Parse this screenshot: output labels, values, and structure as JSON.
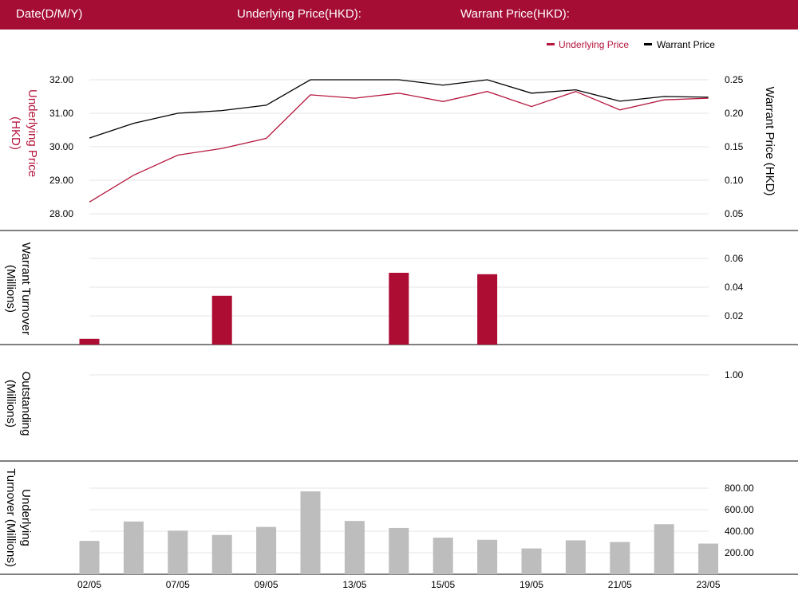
{
  "header": {
    "date_label": "Date(D/M/Y)",
    "underlying_label": "Underlying Price(HKD):",
    "warrant_label": "Warrant Price(HKD):"
  },
  "colors": {
    "brand": "#a50d35",
    "underlying": "#b5173e",
    "warrant": "#000000",
    "turnover_bar": "#ad0c33",
    "underlying_turnover_bar": "#bdbdbd",
    "grid": "#e6e6e6"
  },
  "chart_data": [
    {
      "type": "line",
      "name": "price-panel",
      "x": [
        1,
        2,
        3,
        4,
        5,
        6,
        7,
        8,
        9,
        10,
        11,
        12,
        13,
        14,
        15
      ],
      "series": [
        {
          "name": "Underlying Price",
          "axis": "left",
          "values": [
            28.35,
            29.15,
            29.75,
            29.95,
            30.25,
            31.55,
            31.45,
            31.6,
            31.35,
            31.65,
            31.2,
            31.65,
            31.1,
            31.4,
            31.45
          ]
        },
        {
          "name": "Warrant Price",
          "axis": "right",
          "values": [
            0.163,
            0.185,
            0.2,
            0.204,
            0.212,
            0.25,
            0.25,
            0.25,
            0.242,
            0.25,
            0.23,
            0.235,
            0.218,
            0.225,
            0.224
          ]
        }
      ],
      "ylabel": "Underlying Price (HKD)",
      "ylabel_right": "Warrant  Price (HKD)",
      "yticks": [
        "28.00",
        "29.00",
        "30.00",
        "31.00",
        "32.00"
      ],
      "yticks_right": [
        "0.05",
        "0.10",
        "0.15",
        "0.20",
        "0.25"
      ],
      "ylim": [
        27.5,
        32.5
      ],
      "ylim_right": [
        0.025,
        0.275
      ],
      "legend": "top-right",
      "grid": true
    },
    {
      "type": "bar",
      "name": "warrant-turnover-panel",
      "x": [
        1,
        4,
        8,
        10
      ],
      "values": [
        0.004,
        0.034,
        0.05,
        0.049
      ],
      "ylabel": "Warrant  Turnover (Millions)",
      "yticks": [
        "0.02",
        "0.04",
        "0.06"
      ],
      "ylim": [
        0,
        0.06
      ],
      "grid": true
    },
    {
      "type": "bar",
      "name": "outstanding-panel",
      "x": [],
      "values": [],
      "ylabel": "Outstanding (Millions)",
      "yticks": [
        "1.00"
      ],
      "ylim": [
        0,
        1
      ],
      "grid": true
    },
    {
      "type": "bar",
      "name": "underlying-turnover-panel",
      "x": [
        1,
        2,
        3,
        4,
        5,
        6,
        7,
        8,
        9,
        10,
        11,
        12,
        13,
        14,
        15
      ],
      "values": [
        310,
        490,
        405,
        365,
        440,
        770,
        495,
        430,
        340,
        320,
        240,
        315,
        300,
        465,
        285
      ],
      "ylabel": "Underlying Turnover (Millions)",
      "yticks": [
        "200.00",
        "400.00",
        "600.00",
        "800.00"
      ],
      "ylim": [
        0,
        800
      ],
      "grid": true,
      "xticks": [
        {
          "x": 1,
          "label": "02/05"
        },
        {
          "x": 3,
          "label": "07/05"
        },
        {
          "x": 5,
          "label": "09/05"
        },
        {
          "x": 7,
          "label": "13/05"
        },
        {
          "x": 9,
          "label": "15/05"
        },
        {
          "x": 11,
          "label": "19/05"
        },
        {
          "x": 13,
          "label": "21/05"
        },
        {
          "x": 15,
          "label": "23/05"
        }
      ]
    }
  ]
}
